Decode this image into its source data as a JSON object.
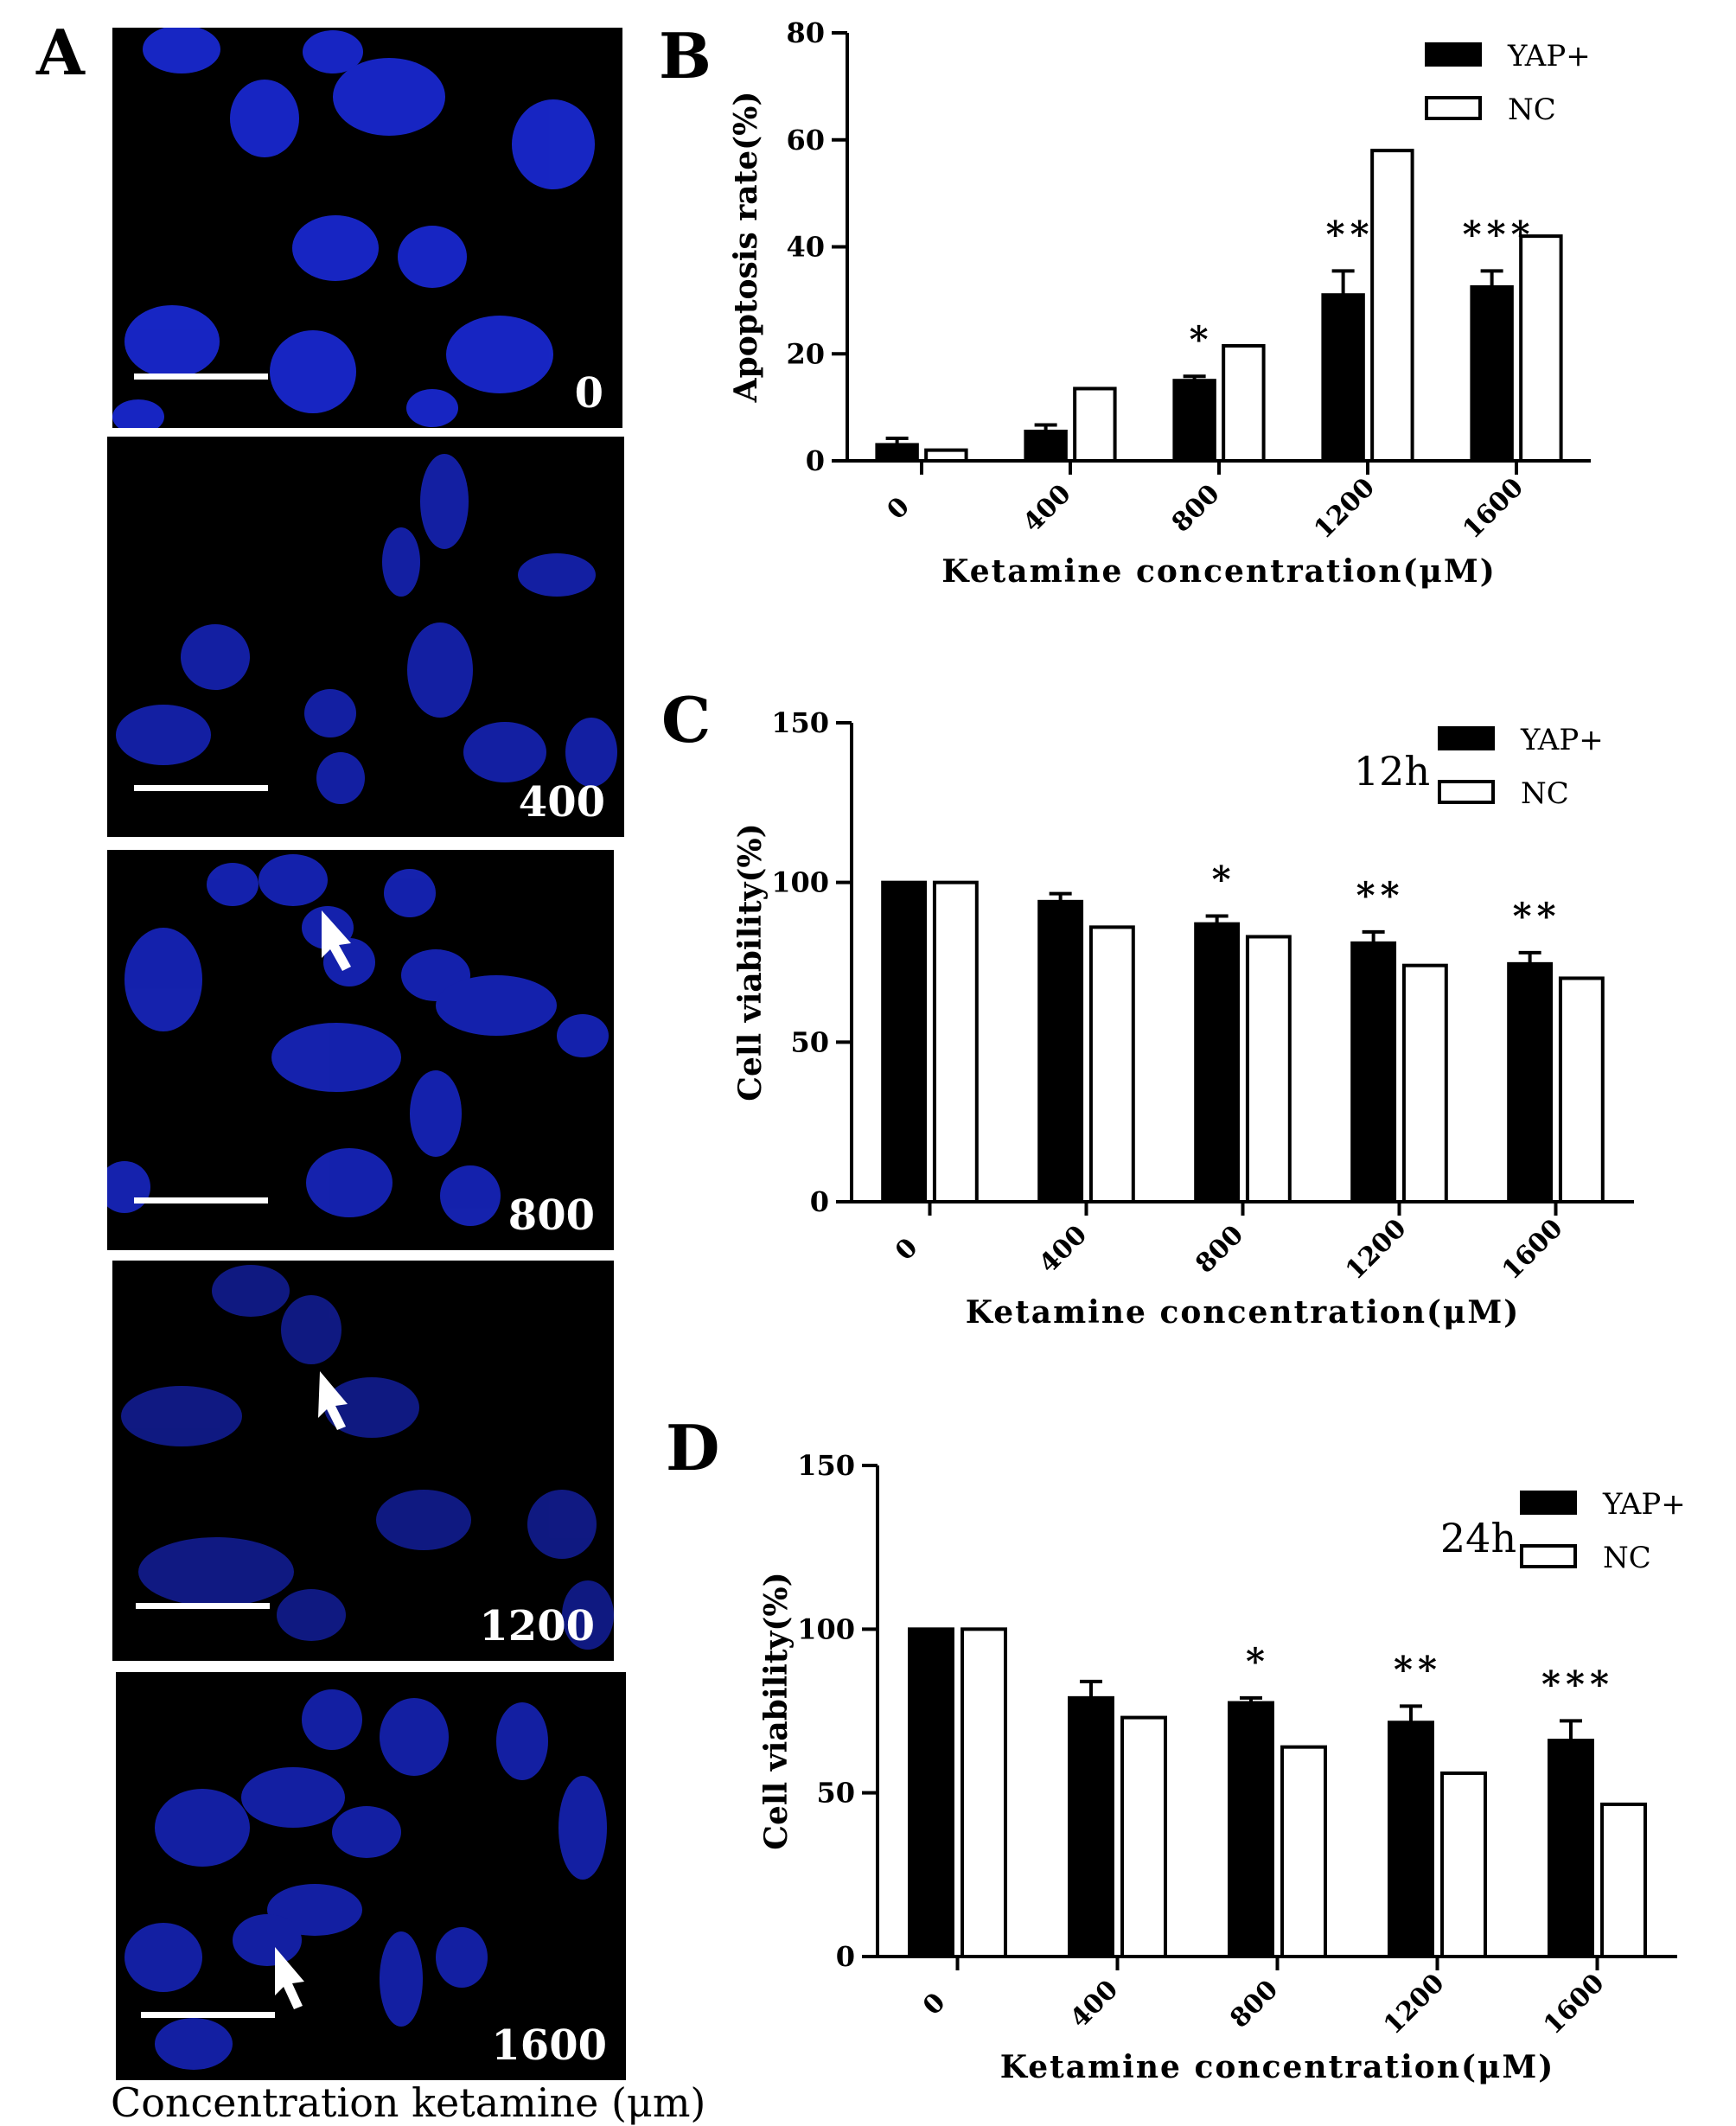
{
  "panels": {
    "a": {
      "letter": "A"
    },
    "b": {
      "letter": "B"
    },
    "c": {
      "letter": "C"
    },
    "d": {
      "letter": "D"
    }
  },
  "micrographs": {
    "caption": "Concentration ketamine (μm)",
    "labels": [
      "0",
      "400",
      "800",
      "1200",
      "1600"
    ],
    "nucleus_color": "#1a2ad8",
    "arrow_color": "#ffffff"
  },
  "colors": {
    "yap_plus": "#000000",
    "nc": "#ffffff",
    "axis": "#000000"
  },
  "chart_data": [
    {
      "type": "bar",
      "panel": "B",
      "categories": [
        "0",
        "400",
        "800",
        "1200",
        "1600"
      ],
      "series": [
        {
          "name": "YAP+",
          "values": [
            3,
            5.5,
            15,
            31,
            32.5
          ],
          "errors": [
            1.2,
            1.2,
            0.8,
            4.5,
            3
          ]
        },
        {
          "name": "NC",
          "values": [
            2,
            13.5,
            21.5,
            58,
            42
          ],
          "errors": [
            0,
            0,
            0,
            0,
            0
          ]
        }
      ],
      "significance": [
        "",
        "",
        "*",
        "**",
        "***"
      ],
      "xlabel": "Ketamine concentration(μM)",
      "ylabel": "Apoptosis rate(%)",
      "annotation": "",
      "ylim": [
        0,
        80
      ],
      "yticks": [
        0,
        20,
        40,
        60,
        80
      ],
      "legend": "top-right"
    },
    {
      "type": "bar",
      "panel": "C",
      "categories": [
        "0",
        "400",
        "800",
        "1200",
        "1600"
      ],
      "series": [
        {
          "name": "YAP+",
          "values": [
            100,
            94,
            87,
            81,
            74.5
          ],
          "errors": [
            0,
            2.5,
            2.5,
            3.5,
            3.5
          ]
        },
        {
          "name": "NC",
          "values": [
            100,
            86,
            83,
            74,
            70
          ],
          "errors": [
            0,
            0,
            0,
            0,
            0
          ]
        }
      ],
      "significance": [
        "",
        "",
        "*",
        "**",
        "**"
      ],
      "xlabel": "Ketamine concentration(μM)",
      "ylabel": "Cell viability(%)",
      "annotation": "12h",
      "ylim": [
        0,
        150
      ],
      "yticks": [
        0,
        50,
        100,
        150
      ],
      "legend": "top-right"
    },
    {
      "type": "bar",
      "panel": "D",
      "categories": [
        "0",
        "400",
        "800",
        "1200",
        "1600"
      ],
      "series": [
        {
          "name": "YAP+",
          "values": [
            100,
            79,
            77.5,
            71.5,
            66
          ],
          "errors": [
            0,
            5,
            1.5,
            5,
            6
          ]
        },
        {
          "name": "NC",
          "values": [
            100,
            73,
            64,
            56,
            46.5
          ],
          "errors": [
            0,
            0,
            0,
            0,
            0
          ]
        }
      ],
      "significance": [
        "",
        "",
        "*",
        "**",
        "***"
      ],
      "xlabel": "Ketamine concentration(μM)",
      "ylabel": "Cell viability(%)",
      "annotation": "24h",
      "ylim": [
        0,
        150
      ],
      "yticks": [
        0,
        50,
        100,
        150
      ],
      "legend": "top-right"
    }
  ]
}
